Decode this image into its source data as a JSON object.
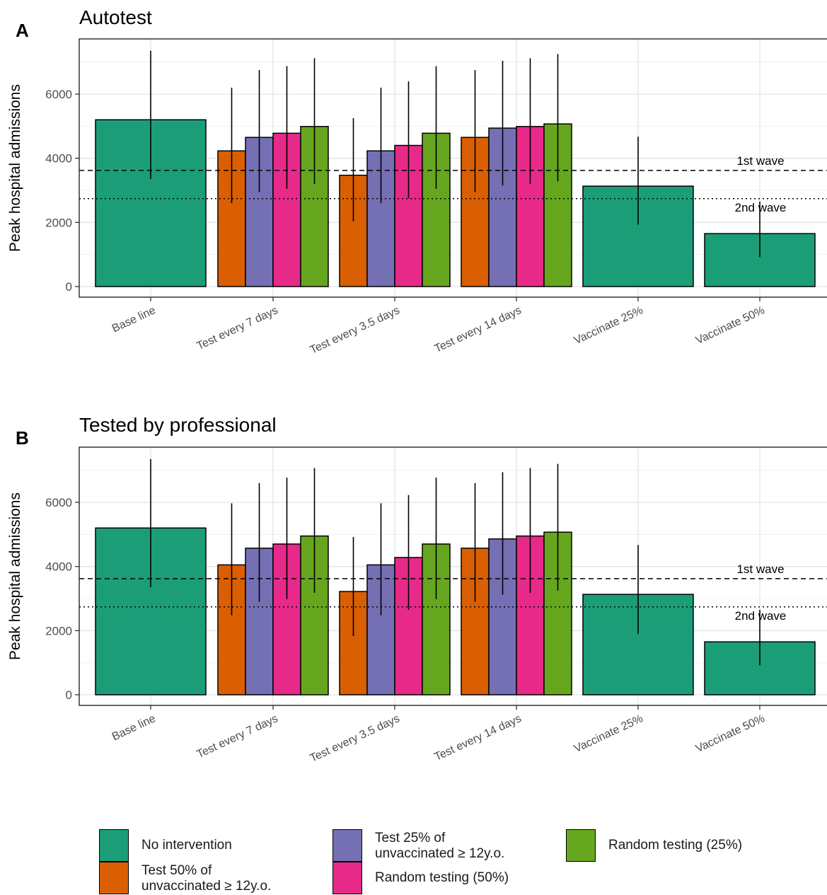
{
  "chart_data": [
    {
      "type": "bar",
      "panel_label": "A",
      "title": "Autotest",
      "ylabel": "Peak hospital admissions",
      "xlabel": "",
      "ylim": [
        0,
        7500
      ],
      "yticks": [
        0,
        2000,
        4000,
        6000
      ],
      "grid": true,
      "categories": [
        "Base line",
        "Test every 7 days",
        "Test every 3.5 days",
        "Test every 14 days",
        "Vaccinate 25%",
        "Vaccinate 50%"
      ],
      "bars": [
        [
          {
            "series": "No intervention",
            "value": 5200,
            "low": 3350,
            "high": 7350
          }
        ],
        [
          {
            "series": "Test 50% of unvaccinated ≥ 12y.o.",
            "value": 4230,
            "low": 2600,
            "high": 6200
          },
          {
            "series": "Test 25% of unvaccinated ≥ 12y.o.",
            "value": 4650,
            "low": 2950,
            "high": 6750
          },
          {
            "series": "Random testing (50%)",
            "value": 4780,
            "low": 3050,
            "high": 6870
          },
          {
            "series": "Random testing (25%)",
            "value": 4990,
            "low": 3200,
            "high": 7120
          }
        ],
        [
          {
            "series": "Test 50% of unvaccinated ≥ 12y.o.",
            "value": 3470,
            "low": 2030,
            "high": 5250
          },
          {
            "series": "Test 25% of unvaccinated ≥ 12y.o.",
            "value": 4230,
            "low": 2600,
            "high": 6200
          },
          {
            "series": "Random testing (50%)",
            "value": 4400,
            "low": 2750,
            "high": 6400
          },
          {
            "series": "Random testing (25%)",
            "value": 4780,
            "low": 3050,
            "high": 6870
          }
        ],
        [
          {
            "series": "Test 50% of unvaccinated ≥ 12y.o.",
            "value": 4650,
            "low": 2950,
            "high": 6750
          },
          {
            "series": "Test 25% of unvaccinated ≥ 12y.o.",
            "value": 4940,
            "low": 3150,
            "high": 7040
          },
          {
            "series": "Random testing (50%)",
            "value": 4990,
            "low": 3200,
            "high": 7120
          },
          {
            "series": "Random testing (25%)",
            "value": 5070,
            "low": 3280,
            "high": 7250
          }
        ],
        [
          {
            "series": "No intervention",
            "value": 3130,
            "low": 1930,
            "high": 4670
          }
        ],
        [
          {
            "series": "No intervention",
            "value": 1650,
            "low": 920,
            "high": 2650
          }
        ]
      ],
      "reference_lines": [
        {
          "label": "1st wave",
          "value": 3620,
          "style": "dashed"
        },
        {
          "label": "2nd wave",
          "value": 2740,
          "style": "dotted"
        }
      ]
    },
    {
      "type": "bar",
      "panel_label": "B",
      "title": "Tested by professional",
      "ylabel": "Peak hospital admissions",
      "xlabel": "",
      "ylim": [
        0,
        7500
      ],
      "yticks": [
        0,
        2000,
        4000,
        6000
      ],
      "grid": true,
      "categories": [
        "Base line",
        "Test every 7 days",
        "Test every 3.5 days",
        "Test every 14 days",
        "Vaccinate 25%",
        "Vaccinate 50%"
      ],
      "bars": [
        [
          {
            "series": "No intervention",
            "value": 5200,
            "low": 3350,
            "high": 7350
          }
        ],
        [
          {
            "series": "Test 50% of unvaccinated ≥ 12y.o.",
            "value": 4050,
            "low": 2480,
            "high": 5970
          },
          {
            "series": "Test 25% of unvaccinated ≥ 12y.o.",
            "value": 4570,
            "low": 2900,
            "high": 6600
          },
          {
            "series": "Random testing (50%)",
            "value": 4700,
            "low": 2980,
            "high": 6770
          },
          {
            "series": "Random testing (25%)",
            "value": 4950,
            "low": 3180,
            "high": 7070
          }
        ],
        [
          {
            "series": "Test 50% of unvaccinated ≥ 12y.o.",
            "value": 3220,
            "low": 1830,
            "high": 4920
          },
          {
            "series": "Test 25% of unvaccinated ≥ 12y.o.",
            "value": 4050,
            "low": 2480,
            "high": 5970
          },
          {
            "series": "Random testing (50%)",
            "value": 4280,
            "low": 2650,
            "high": 6230
          },
          {
            "series": "Random testing (25%)",
            "value": 4700,
            "low": 2980,
            "high": 6770
          }
        ],
        [
          {
            "series": "Test 50% of unvaccinated ≥ 12y.o.",
            "value": 4570,
            "low": 2900,
            "high": 6600
          },
          {
            "series": "Test 25% of unvaccinated ≥ 12y.o.",
            "value": 4860,
            "low": 3120,
            "high": 6940
          },
          {
            "series": "Random testing (50%)",
            "value": 4950,
            "low": 3180,
            "high": 7070
          },
          {
            "series": "Random testing (25%)",
            "value": 5070,
            "low": 3250,
            "high": 7200
          }
        ],
        [
          {
            "series": "No intervention",
            "value": 3130,
            "low": 1900,
            "high": 4670
          }
        ],
        [
          {
            "series": "No intervention",
            "value": 1650,
            "low": 920,
            "high": 2650
          }
        ]
      ],
      "reference_lines": [
        {
          "label": "1st wave",
          "value": 3620,
          "style": "dashed"
        },
        {
          "label": "2nd wave",
          "value": 2740,
          "style": "dotted"
        }
      ]
    }
  ],
  "legend": {
    "placement": "bottom",
    "items": [
      {
        "label": "No intervention",
        "color": "#1b9e77"
      },
      {
        "label": "Test 50% of\nunvaccinated ≥ 12y.o.",
        "color": "#d95f02"
      },
      {
        "label": "Test 25% of\nunvaccinated ≥ 12y.o.",
        "color": "#7570b3"
      },
      {
        "label": "Random testing (50%)",
        "color": "#e7298a"
      },
      {
        "label": "Random testing (25%)",
        "color": "#66a61e"
      }
    ]
  },
  "colors": {
    "No intervention": "#1b9e77",
    "Test 50% of unvaccinated ≥ 12y.o.": "#d95f02",
    "Test 25% of unvaccinated ≥ 12y.o.": "#7570b3",
    "Random testing (50%)": "#e7298a",
    "Random testing (25%)": "#66a61e"
  }
}
